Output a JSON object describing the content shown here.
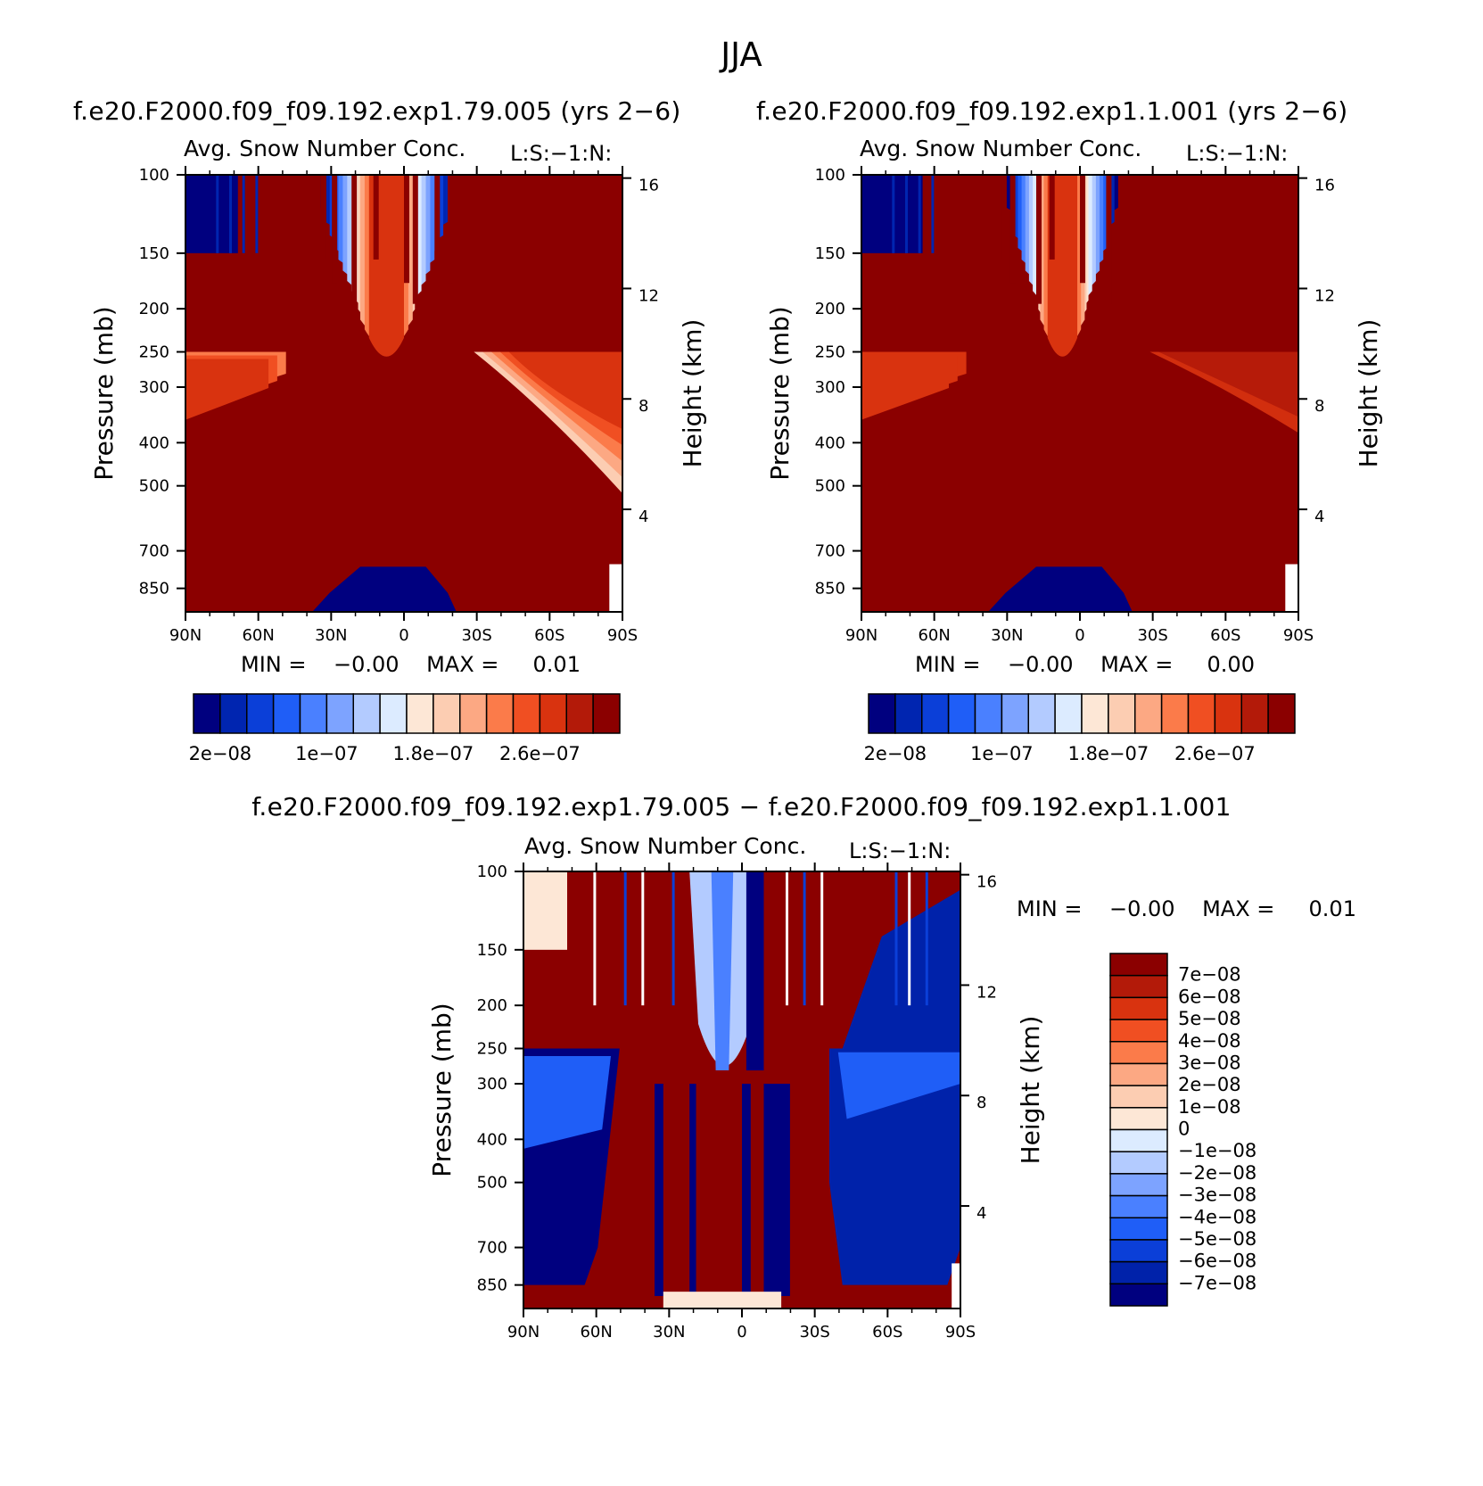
{
  "figure": {
    "title": "JJA",
    "colors": {
      "palette": [
        "#00007f",
        "#0025b0",
        "#0b3fd8",
        "#1f5ef7",
        "#4a80ff",
        "#7da3ff",
        "#b3cbff",
        "#dcebff",
        "#fde7d6",
        "#fccdb2",
        "#fca883",
        "#fb7b4a",
        "#f04f22",
        "#d9330f",
        "#b31a09",
        "#8b0000"
      ],
      "diff_palette": [
        "#00007f",
        "#0022aa",
        "#0b3fd8",
        "#1f5ef7",
        "#4a80ff",
        "#7da3ff",
        "#b3cbff",
        "#dcebff",
        "#fde7d6",
        "#fccdb2",
        "#fca883",
        "#fb7b4a",
        "#f04f22",
        "#d9330f",
        "#b31a09",
        "#8b0000"
      ]
    }
  },
  "panels": {
    "left": {
      "run_title": "f.e20.F2000.f09_f09.192.exp1.79.005 (yrs 2−6)",
      "plot_title": "Avg. Snow Number Conc.",
      "tag": "L:S:−1:N:",
      "min_label": "MIN =",
      "min_value": "−0.00",
      "max_label": "MAX =",
      "max_value": "0.01"
    },
    "right": {
      "run_title": "f.e20.F2000.f09_f09.192.exp1.1.001 (yrs 2−6)",
      "plot_title": "Avg. Snow Number Conc.",
      "tag": "L:S:−1:N:",
      "min_label": "MIN =",
      "min_value": "−0.00",
      "max_label": "MAX =",
      "max_value": "0.00"
    },
    "diff": {
      "run_title": "f.e20.F2000.f09_f09.192.exp1.79.005 − f.e20.F2000.f09_f09.192.exp1.1.001",
      "plot_title": "Avg. Snow Number Conc.",
      "tag": "L:S:−1:N:",
      "min_label": "MIN =",
      "min_value": "−0.00",
      "max_label": "MAX =",
      "max_value": "0.01"
    }
  },
  "chart_data": [
    {
      "type": "heatmap",
      "panel": "left",
      "title": "Avg. Snow Number Conc.",
      "xlabel": "",
      "ylabel": "Pressure (mb)",
      "y2label": "Height (km)",
      "x_ticks": [
        "90N",
        "60N",
        "30N",
        "0",
        "30S",
        "60S",
        "90S"
      ],
      "y_ticks": [
        100,
        150,
        200,
        250,
        300,
        400,
        500,
        700,
        850
      ],
      "y2_ticks": [
        16,
        12,
        8,
        4
      ],
      "colorbar_labels": [
        "2e−08",
        "1e−07",
        "1.8e−07",
        "2.6e−07"
      ],
      "colorbar_levels": 16,
      "dominant_color": "#8b0000"
    },
    {
      "type": "heatmap",
      "panel": "right",
      "title": "Avg. Snow Number Conc.",
      "xlabel": "",
      "ylabel": "Pressure (mb)",
      "y2label": "Height (km)",
      "x_ticks": [
        "90N",
        "60N",
        "30N",
        "0",
        "30S",
        "60S",
        "90S"
      ],
      "y_ticks": [
        100,
        150,
        200,
        250,
        300,
        400,
        500,
        700,
        850
      ],
      "y2_ticks": [
        16,
        12,
        8,
        4
      ],
      "colorbar_labels": [
        "2e−08",
        "1e−07",
        "1.8e−07",
        "2.6e−07"
      ],
      "colorbar_levels": 16,
      "dominant_color": "#8b0000"
    },
    {
      "type": "heatmap",
      "panel": "diff",
      "title": "Avg. Snow Number Conc.",
      "xlabel": "",
      "ylabel": "Pressure (mb)",
      "y2label": "Height (km)",
      "x_ticks": [
        "90N",
        "60N",
        "30N",
        "0",
        "30S",
        "60S",
        "90S"
      ],
      "y_ticks": [
        100,
        150,
        200,
        250,
        300,
        400,
        500,
        700,
        850
      ],
      "y2_ticks": [
        16,
        12,
        8,
        4
      ],
      "colorbar_labels": [
        "7e−08",
        "6e−08",
        "5e−08",
        "4e−08",
        "3e−08",
        "2e−08",
        "1e−08",
        "0",
        "−1e−08",
        "−2e−08",
        "−3e−08",
        "−4e−08",
        "−5e−08",
        "−6e−08",
        "−7e−08"
      ],
      "colorbar_levels": 16
    }
  ]
}
